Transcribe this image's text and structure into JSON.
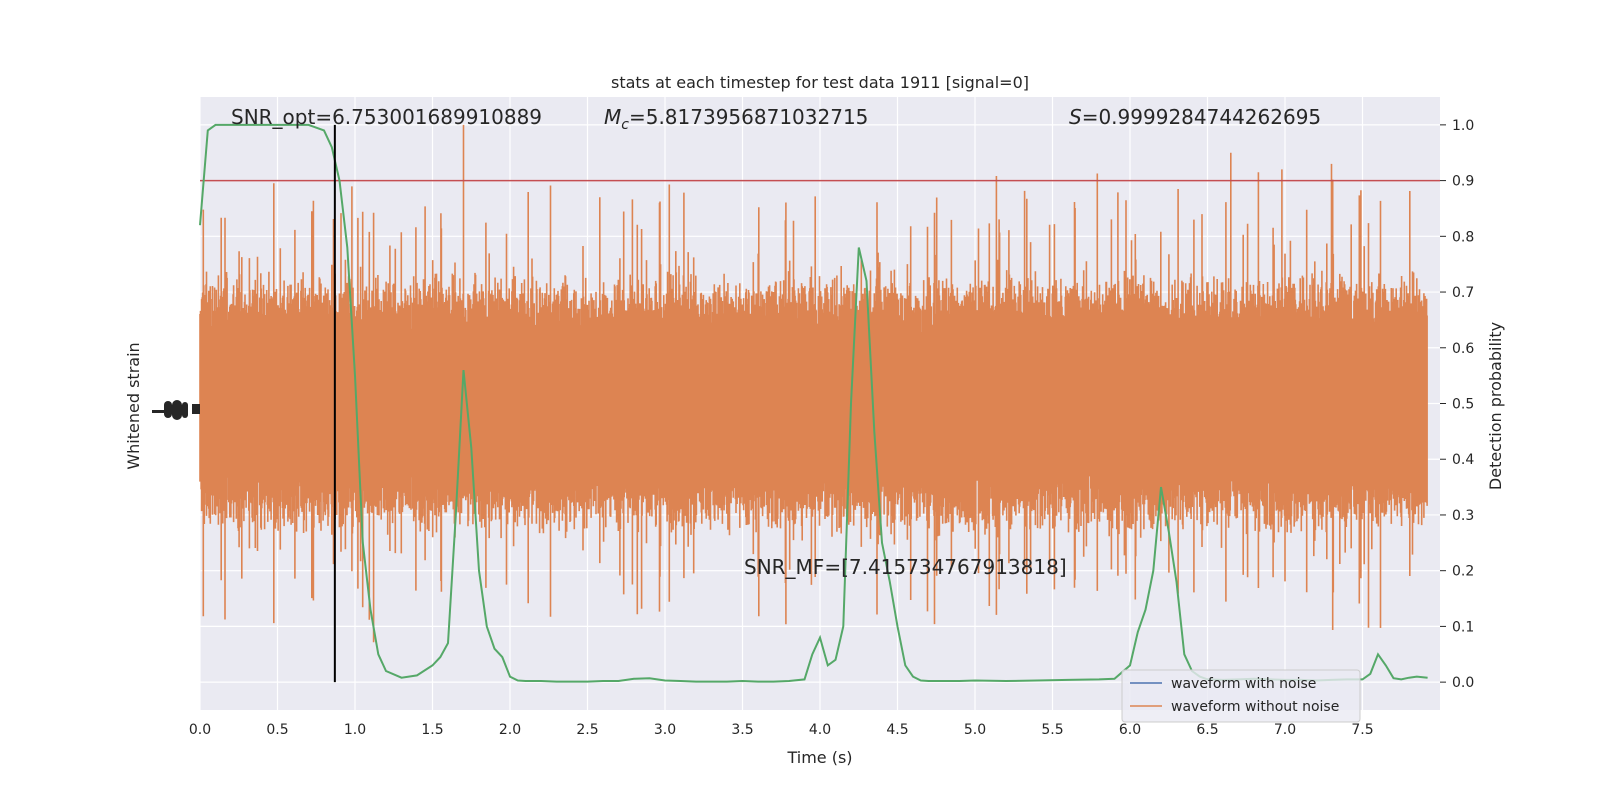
{
  "chart_data": {
    "type": "line",
    "title": "stats at each timestep for test data 1911 [signal=0]",
    "xlabel": "Time (s)",
    "ylabel_left": "Whitened strain",
    "ylabel_right": "Detection probability",
    "xlim": [
      0.0,
      8.0
    ],
    "ylim_right": [
      -0.05,
      1.05
    ],
    "x_ticks": [
      "0.0",
      "0.5",
      "1.0",
      "1.5",
      "2.0",
      "2.5",
      "3.0",
      "3.5",
      "4.0",
      "4.5",
      "5.0",
      "5.5",
      "6.0",
      "6.5",
      "7.0",
      "7.5"
    ],
    "x_tick_values": [
      0.0,
      0.5,
      1.0,
      1.5,
      2.0,
      2.5,
      3.0,
      3.5,
      4.0,
      4.5,
      5.0,
      5.5,
      6.0,
      6.5,
      7.0,
      7.5
    ],
    "y_ticks_right": [
      "0.0",
      "0.1",
      "0.2",
      "0.3",
      "0.4",
      "0.5",
      "0.6",
      "0.7",
      "0.8",
      "0.9",
      "1.0"
    ],
    "y_tick_values_right": [
      0.0,
      0.1,
      0.2,
      0.3,
      0.4,
      0.5,
      0.6,
      0.7,
      0.8,
      0.9,
      1.0
    ],
    "grid": true,
    "legend_position": "lower-right",
    "legend": [
      {
        "label": "waveform with noise",
        "color": "#4c72b0"
      },
      {
        "label": "waveform without noise",
        "color": "#dd8452"
      }
    ],
    "annotations": {
      "snr_opt": "SNR_opt=6.753001689910889",
      "mc_symbol": "M",
      "mc_subscript": "c",
      "mc_value": "=5.8173956871032715",
      "s_symbol": "S",
      "s_value": "=0.9999284744262695",
      "snr_mf": "SNR_MF=[7.41573476791381​8]"
    },
    "threshold": {
      "value": 0.9,
      "color": "#c44e52"
    },
    "marker_time": 0.87,
    "probability_series": {
      "name": "",
      "color": "#55a868",
      "x": [
        0.0,
        0.05,
        0.1,
        0.15,
        0.2,
        0.3,
        0.4,
        0.5,
        0.6,
        0.7,
        0.8,
        0.85,
        0.9,
        0.95,
        1.0,
        1.05,
        1.1,
        1.15,
        1.2,
        1.3,
        1.4,
        1.5,
        1.55,
        1.6,
        1.65,
        1.7,
        1.75,
        1.8,
        1.85,
        1.9,
        1.95,
        2.0,
        2.05,
        2.1,
        2.2,
        2.3,
        2.4,
        2.5,
        2.6,
        2.7,
        2.8,
        2.9,
        3.0,
        3.1,
        3.2,
        3.3,
        3.4,
        3.5,
        3.6,
        3.7,
        3.8,
        3.9,
        3.95,
        4.0,
        4.05,
        4.1,
        4.15,
        4.2,
        4.25,
        4.3,
        4.35,
        4.4,
        4.45,
        4.5,
        4.55,
        4.6,
        4.65,
        4.7,
        4.8,
        4.9,
        5.0,
        5.2,
        5.4,
        5.6,
        5.8,
        5.9,
        6.0,
        6.05,
        6.1,
        6.15,
        6.2,
        6.25,
        6.3,
        6.35,
        6.4,
        6.45,
        6.5,
        6.6,
        6.7,
        6.8,
        6.9,
        7.0,
        7.1,
        7.2,
        7.3,
        7.4,
        7.5,
        7.55,
        7.6,
        7.65,
        7.7,
        7.75,
        7.8,
        7.85,
        7.92
      ],
      "y": [
        0.82,
        0.99,
        1.0,
        1.0,
        1.0,
        1.0,
        1.0,
        1.0,
        1.0,
        1.0,
        0.99,
        0.96,
        0.9,
        0.78,
        0.55,
        0.25,
        0.13,
        0.05,
        0.02,
        0.008,
        0.012,
        0.03,
        0.045,
        0.07,
        0.3,
        0.56,
        0.42,
        0.2,
        0.1,
        0.06,
        0.045,
        0.01,
        0.003,
        0.002,
        0.002,
        0.001,
        0.001,
        0.001,
        0.002,
        0.002,
        0.006,
        0.007,
        0.003,
        0.002,
        0.001,
        0.001,
        0.001,
        0.002,
        0.001,
        0.001,
        0.002,
        0.005,
        0.05,
        0.08,
        0.03,
        0.04,
        0.1,
        0.5,
        0.78,
        0.72,
        0.45,
        0.25,
        0.18,
        0.1,
        0.03,
        0.01,
        0.003,
        0.002,
        0.002,
        0.002,
        0.003,
        0.002,
        0.003,
        0.004,
        0.005,
        0.006,
        0.03,
        0.09,
        0.13,
        0.2,
        0.35,
        0.27,
        0.18,
        0.05,
        0.02,
        0.01,
        0.005,
        0.004,
        0.005,
        0.006,
        0.005,
        0.004,
        0.004,
        0.003,
        0.004,
        0.005,
        0.005,
        0.015,
        0.05,
        0.03,
        0.007,
        0.005,
        0.008,
        0.01,
        0.008
      ]
    },
    "strain_series": {
      "name": "",
      "color": "#dd8452",
      "center": 0.5,
      "band_half_width": 0.2,
      "peak_half_width": 0.38,
      "notable_peaks": [
        {
          "x": 1.7,
          "y": 1.0
        },
        {
          "x": 6.65,
          "y": 0.95
        },
        {
          "x": 7.3,
          "y": 0.93
        },
        {
          "x": 6.98,
          "y": 0.92
        }
      ]
    }
  }
}
